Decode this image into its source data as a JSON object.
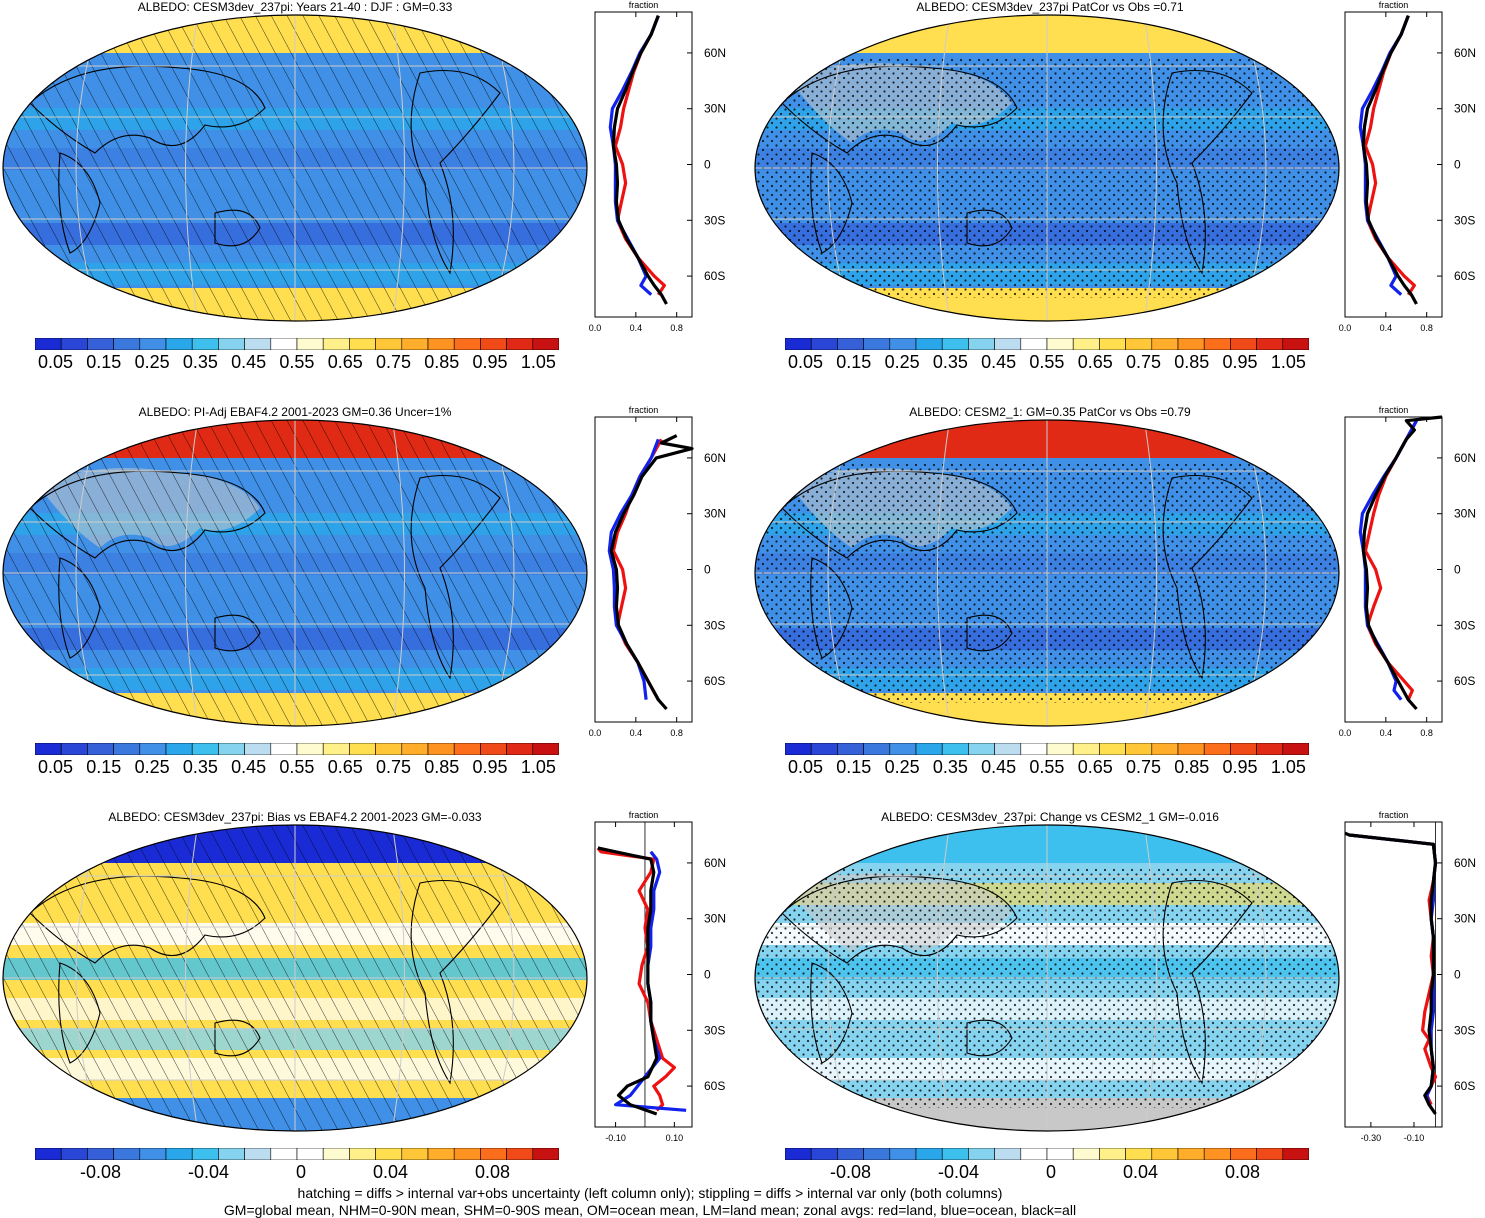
{
  "chart_data": [
    {
      "type": "heatmap",
      "title": "ALBEDO: CESM3dev_237pi: Years 21-40 : DJF : GM=0.33",
      "colorbar_labels": [
        "0.05",
        "0.15",
        "0.25",
        "0.35",
        "0.45",
        "0.55",
        "0.65",
        "0.75",
        "0.85",
        "0.95",
        "1.05"
      ],
      "zonal": {
        "title": "fraction",
        "xticks": [
          "0.0",
          "0.4",
          "0.8"
        ],
        "xlim": [
          0.0,
          0.95
        ],
        "yticks": [
          "60N",
          "30N",
          "0",
          "30S",
          "60S"
        ],
        "series": [
          {
            "color": "red",
            "lat": [
              80,
              70,
              60,
              50,
              40,
              30,
              20,
              10,
              0,
              -10,
              -20,
              -30,
              -40,
              -50,
              -60,
              -65,
              -70
            ],
            "values": [
              0.62,
              0.55,
              0.45,
              0.38,
              0.33,
              0.28,
              0.25,
              0.2,
              0.27,
              0.3,
              0.26,
              0.22,
              0.3,
              0.42,
              0.58,
              0.68,
              0.62
            ]
          },
          {
            "color": "blue",
            "lat": [
              80,
              70,
              60,
              50,
              40,
              30,
              20,
              10,
              0,
              -10,
              -20,
              -30,
              -40,
              -50,
              -60,
              -65,
              -70
            ],
            "values": [
              0.62,
              0.55,
              0.44,
              0.36,
              0.27,
              0.17,
              0.15,
              0.18,
              0.2,
              0.2,
              0.2,
              0.22,
              0.32,
              0.42,
              0.5,
              0.45,
              0.55
            ]
          },
          {
            "color": "black",
            "lat": [
              80,
              70,
              60,
              50,
              40,
              30,
              20,
              10,
              0,
              -10,
              -20,
              -30,
              -40,
              -50,
              -60,
              -65,
              -70,
              -75
            ],
            "values": [
              0.62,
              0.55,
              0.45,
              0.37,
              0.3,
              0.22,
              0.19,
              0.18,
              0.21,
              0.22,
              0.21,
              0.23,
              0.31,
              0.42,
              0.52,
              0.58,
              0.65,
              0.7
            ]
          }
        ]
      }
    },
    {
      "type": "heatmap",
      "title": "ALBEDO: CESM3dev_237pi PatCor vs Obs =0.71",
      "colorbar_labels": [
        "0.05",
        "0.15",
        "0.25",
        "0.35",
        "0.45",
        "0.55",
        "0.65",
        "0.75",
        "0.85",
        "0.95",
        "1.05"
      ],
      "zonal": {
        "title": "fraction",
        "xticks": [
          "0.0",
          "0.4",
          "0.8"
        ],
        "xlim": [
          0.0,
          0.95
        ],
        "yticks": [
          "60N",
          "30N",
          "0",
          "30S",
          "60S"
        ],
        "series": [
          {
            "color": "red",
            "lat": [
              80,
              70,
              60,
              50,
              40,
              30,
              20,
              10,
              0,
              -10,
              -20,
              -30,
              -40,
              -50,
              -60,
              -65,
              -70
            ],
            "values": [
              0.62,
              0.55,
              0.45,
              0.38,
              0.33,
              0.28,
              0.25,
              0.2,
              0.27,
              0.3,
              0.26,
              0.22,
              0.3,
              0.42,
              0.58,
              0.68,
              0.62
            ]
          },
          {
            "color": "blue",
            "lat": [
              80,
              70,
              60,
              50,
              40,
              30,
              20,
              10,
              0,
              -10,
              -20,
              -30,
              -40,
              -50,
              -60,
              -65,
              -70
            ],
            "values": [
              0.62,
              0.55,
              0.44,
              0.36,
              0.27,
              0.17,
              0.15,
              0.18,
              0.2,
              0.2,
              0.2,
              0.22,
              0.32,
              0.42,
              0.5,
              0.45,
              0.55
            ]
          },
          {
            "color": "black",
            "lat": [
              80,
              70,
              60,
              50,
              40,
              30,
              20,
              10,
              0,
              -10,
              -20,
              -30,
              -40,
              -50,
              -60,
              -65,
              -70,
              -75
            ],
            "values": [
              0.62,
              0.55,
              0.45,
              0.37,
              0.3,
              0.22,
              0.19,
              0.18,
              0.21,
              0.22,
              0.21,
              0.23,
              0.31,
              0.42,
              0.52,
              0.58,
              0.65,
              0.7
            ]
          }
        ]
      }
    },
    {
      "type": "heatmap",
      "title": "ALBEDO: PI-Adj EBAF4.2 2001-2023 GM=0.36 Uncer=1%",
      "colorbar_labels": [
        "0.05",
        "0.15",
        "0.25",
        "0.35",
        "0.45",
        "0.55",
        "0.65",
        "0.75",
        "0.85",
        "0.95",
        "1.05"
      ],
      "zonal": {
        "title": "fraction",
        "xticks": [
          "0.0",
          "0.4",
          "0.8"
        ],
        "xlim": [
          0.0,
          0.95
        ],
        "yticks": [
          "60N",
          "30N",
          "0",
          "30S",
          "60S"
        ],
        "series": [
          {
            "color": "red",
            "lat": [
              70,
              60,
              50,
              40,
              30,
              20,
              10,
              0,
              -10,
              -20,
              -30,
              -40,
              -50,
              -60,
              -70
            ],
            "values": [
              0.65,
              0.55,
              0.44,
              0.36,
              0.3,
              0.22,
              0.18,
              0.27,
              0.3,
              0.26,
              0.22,
              0.3,
              0.42,
              0.52,
              0.62
            ]
          },
          {
            "color": "blue",
            "lat": [
              70,
              60,
              50,
              40,
              30,
              20,
              10,
              0,
              -10,
              -20,
              -30,
              -40,
              -50,
              -60,
              -70
            ],
            "values": [
              0.62,
              0.55,
              0.44,
              0.36,
              0.25,
              0.16,
              0.14,
              0.18,
              0.19,
              0.19,
              0.21,
              0.31,
              0.42,
              0.48,
              0.5
            ]
          },
          {
            "color": "black",
            "lat": [
              72,
              68,
              65,
              60,
              50,
              40,
              30,
              20,
              10,
              0,
              -10,
              -20,
              -30,
              -40,
              -50,
              -60,
              -70,
              -75
            ],
            "values": [
              0.8,
              0.65,
              0.95,
              0.6,
              0.46,
              0.38,
              0.28,
              0.2,
              0.16,
              0.21,
              0.22,
              0.21,
              0.23,
              0.31,
              0.42,
              0.52,
              0.62,
              0.7
            ]
          }
        ]
      }
    },
    {
      "type": "heatmap",
      "title": "ALBEDO: CESM2_1: GM=0.35 PatCor vs Obs =0.79",
      "colorbar_labels": [
        "0.05",
        "0.15",
        "0.25",
        "0.35",
        "0.45",
        "0.55",
        "0.65",
        "0.75",
        "0.85",
        "0.95",
        "1.05"
      ],
      "zonal": {
        "title": "fraction",
        "xticks": [
          "0.0",
          "0.4",
          "0.8"
        ],
        "xlim": [
          0.0,
          0.95
        ],
        "yticks": [
          "60N",
          "30N",
          "0",
          "30S",
          "60S"
        ],
        "series": [
          {
            "color": "red",
            "lat": [
              80,
              70,
              60,
              50,
              40,
              30,
              20,
              10,
              0,
              -10,
              -20,
              -30,
              -40,
              -50,
              -60,
              -65,
              -70
            ],
            "values": [
              0.7,
              0.6,
              0.5,
              0.4,
              0.33,
              0.28,
              0.24,
              0.2,
              0.3,
              0.35,
              0.28,
              0.22,
              0.3,
              0.42,
              0.58,
              0.66,
              0.62
            ]
          },
          {
            "color": "blue",
            "lat": [
              80,
              70,
              60,
              50,
              40,
              30,
              20,
              10,
              0,
              -10,
              -20,
              -30,
              -40,
              -50,
              -60,
              -65,
              -70
            ],
            "values": [
              0.7,
              0.6,
              0.5,
              0.38,
              0.27,
              0.17,
              0.15,
              0.18,
              0.2,
              0.2,
              0.2,
              0.22,
              0.32,
              0.42,
              0.5,
              0.48,
              0.55
            ]
          },
          {
            "color": "black",
            "lat": [
              82,
              80,
              75,
              70,
              60,
              50,
              40,
              30,
              20,
              10,
              0,
              -10,
              -20,
              -30,
              -40,
              -50,
              -60,
              -70,
              -75
            ],
            "values": [
              0.95,
              0.6,
              0.68,
              0.6,
              0.5,
              0.39,
              0.3,
              0.22,
              0.19,
              0.18,
              0.21,
              0.22,
              0.21,
              0.23,
              0.31,
              0.42,
              0.52,
              0.62,
              0.7
            ]
          }
        ]
      }
    },
    {
      "type": "heatmap",
      "title": "ALBEDO: CESM3dev_237pi: Bias vs EBAF4.2 2001-2023 GM=-0.033",
      "colorbar_labels": [
        "-0.08",
        "-0.04",
        "0",
        "0.04",
        "0.08"
      ],
      "zonal": {
        "title": "fraction",
        "xticks": [
          "-0.10",
          "0.10"
        ],
        "xlim": [
          -0.17,
          0.16
        ],
        "yticks": [
          "60N",
          "30N",
          "0",
          "30S",
          "60S"
        ],
        "series": [
          {
            "color": "red",
            "lat": [
              68,
              66,
              62,
              55,
              45,
              35,
              25,
              15,
              5,
              -5,
              -15,
              -25,
              -35,
              -45,
              -50,
              -55,
              -60,
              -65,
              -70,
              -73
            ],
            "values": [
              -0.16,
              -0.15,
              0.03,
              0.02,
              -0.02,
              0.01,
              0.0,
              0.01,
              -0.01,
              -0.02,
              0.01,
              0.02,
              0.04,
              0.06,
              0.1,
              0.07,
              0.03,
              0.05,
              0.06,
              0.04
            ]
          },
          {
            "color": "blue",
            "lat": [
              66,
              62,
              55,
              45,
              35,
              25,
              15,
              5,
              -5,
              -15,
              -25,
              -35,
              -45,
              -55,
              -65,
              -70,
              -73
            ],
            "values": [
              0.02,
              0.04,
              0.05,
              0.03,
              0.03,
              0.02,
              0.02,
              0.01,
              0.01,
              0.02,
              0.02,
              0.03,
              0.05,
              0.0,
              -0.05,
              -0.1,
              0.14
            ]
          },
          {
            "color": "black",
            "lat": [
              68,
              66,
              62,
              55,
              45,
              35,
              25,
              15,
              5,
              -5,
              -15,
              -25,
              -35,
              -45,
              -55,
              -60,
              -65,
              -70,
              -75
            ],
            "values": [
              -0.16,
              -0.1,
              0.02,
              0.03,
              0.02,
              0.02,
              0.01,
              0.01,
              0.01,
              0.01,
              0.02,
              0.02,
              0.03,
              0.04,
              0.01,
              -0.06,
              -0.09,
              -0.05,
              0.04
            ]
          }
        ]
      }
    },
    {
      "type": "heatmap",
      "title": "ALBEDO: CESM3dev_237pi: Change vs CESM2_1 GM=-0.016",
      "colorbar_labels": [
        "-0.08",
        "-0.04",
        "0",
        "0.04",
        "0.08"
      ],
      "zonal": {
        "title": "fraction",
        "xticks": [
          "-0.30",
          "-0.10"
        ],
        "xlim": [
          -0.42,
          0.03
        ],
        "yticks": [
          "60N",
          "30N",
          "0",
          "30S",
          "60S"
        ],
        "series": [
          {
            "color": "red",
            "lat": [
              75,
              70,
              60,
              50,
              40,
              30,
              20,
              10,
              0,
              -10,
              -20,
              -30,
              -35,
              -40,
              -50,
              -55,
              -60,
              -65,
              -70
            ],
            "values": [
              -0.4,
              -0.01,
              0.0,
              -0.01,
              -0.03,
              -0.02,
              -0.01,
              -0.02,
              -0.01,
              -0.03,
              -0.05,
              -0.06,
              -0.03,
              -0.05,
              -0.02,
              0.0,
              -0.02,
              -0.04,
              -0.02
            ]
          },
          {
            "color": "blue",
            "lat": [
              75,
              70,
              60,
              50,
              40,
              30,
              20,
              10,
              0,
              -10,
              -20,
              -30,
              -40,
              -50,
              -60,
              -65,
              -70
            ],
            "values": [
              -0.4,
              -0.01,
              0.0,
              -0.01,
              -0.01,
              -0.02,
              -0.01,
              -0.01,
              -0.01,
              -0.01,
              -0.01,
              -0.02,
              -0.02,
              -0.01,
              -0.02,
              -0.04,
              -0.03
            ]
          },
          {
            "color": "black",
            "lat": [
              76,
              75,
              70,
              60,
              50,
              40,
              30,
              20,
              10,
              0,
              -10,
              -20,
              -30,
              -40,
              -50,
              -60,
              -65,
              -70,
              -75
            ],
            "values": [
              -0.42,
              -0.4,
              -0.01,
              0.0,
              -0.01,
              -0.02,
              -0.02,
              -0.01,
              -0.01,
              -0.01,
              -0.02,
              -0.02,
              -0.03,
              -0.02,
              -0.01,
              -0.02,
              -0.05,
              -0.03,
              0.0
            ]
          }
        ]
      }
    }
  ],
  "footer": {
    "line1": "hatching = diffs > internal var+obs uncertainty (left column only); stippling = diffs > internal var only (both columns)",
    "line2": "GM=global mean, NHM=0-90N mean, SHM=0-90S mean, OM=ocean mean, LM=land mean; zonal avgs: red=land, blue=ocean, black=all"
  },
  "colors": {
    "abs_scale": [
      "#1a2bd6",
      "#2a46d6",
      "#3560d8",
      "#3a78de",
      "#3f90e6",
      "#2aa7ea",
      "#3ec0ee",
      "#85d3ee",
      "#bcdcef",
      "#ffffff",
      "#fffbd0",
      "#fff08a",
      "#ffde50",
      "#ffc737",
      "#ffad2a",
      "#ff9322",
      "#fc6d1c",
      "#f04a18",
      "#e02a16",
      "#c81212"
    ],
    "diff_scale": [
      "#1a2bd6",
      "#2a46d6",
      "#3560d8",
      "#3a78de",
      "#3f90e6",
      "#2aa7ea",
      "#3ec0ee",
      "#85d3ee",
      "#bcdcef",
      "#ffffff",
      "#ffffff",
      "#fffbd0",
      "#fff08a",
      "#ffde50",
      "#ffc737",
      "#ffad2a",
      "#ff9322",
      "#fc6d1c",
      "#f04a18",
      "#c81212"
    ],
    "land_gray": "#c8c8c8"
  }
}
